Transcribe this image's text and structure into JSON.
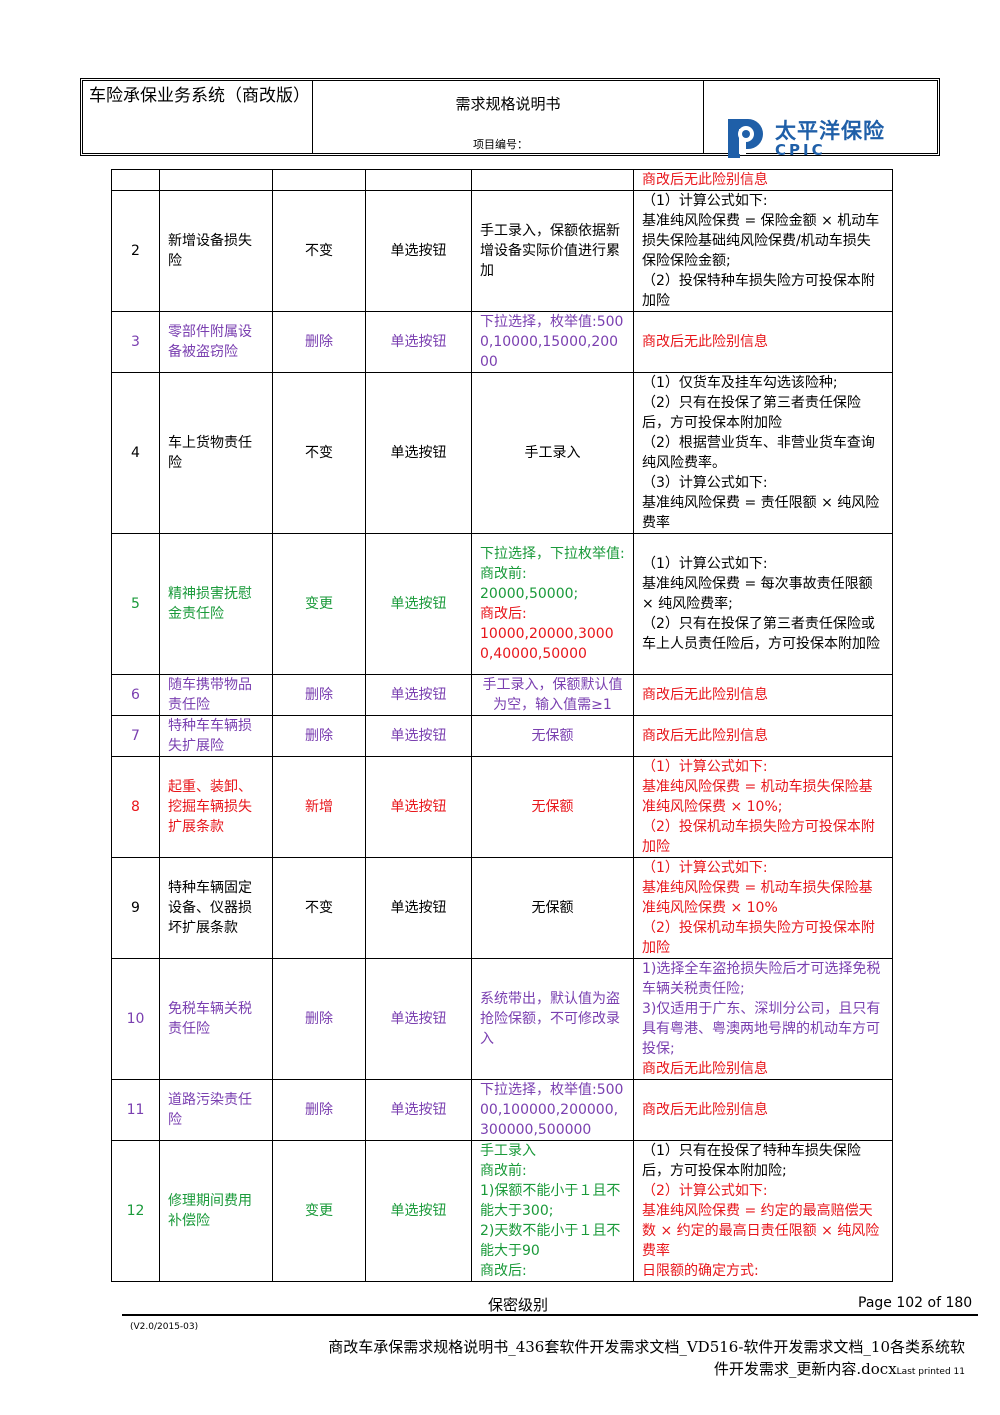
{
  "header": {
    "system_name": "车险承保业务系统（商改版）",
    "doc_title": "需求规格说明书",
    "project_no_label": "项目编号：",
    "logo_text": "太平洋保险",
    "logo_sub": "CPIC"
  },
  "rows": [
    {
      "no": "",
      "name": "",
      "change": "",
      "control": "",
      "value": [],
      "rule": [
        {
          "t": "商改后无此险别信息",
          "c": "red"
        }
      ],
      "color": ""
    },
    {
      "no": "2",
      "name": "新增设备损失险",
      "change": "不变",
      "control": "单选按钮",
      "color": "",
      "value": [
        {
          "t": "手工录入，保额依据新增设备实际价值进行累加",
          "c": ""
        }
      ],
      "rule": [
        {
          "t": "（1）计算公式如下:",
          "c": ""
        },
        {
          "t": "基准纯风险保费 = 保险金额 × 机动车损失保险基础纯风险保费/机动车损失保险保险金额;",
          "c": ""
        },
        {
          "t": "（2）投保特种车损失险方可投保本附加险",
          "c": ""
        }
      ]
    },
    {
      "no": "3",
      "name": "零部件附属设备被盗窃险",
      "change": "删除",
      "control": "单选按钮",
      "color": "purple",
      "value": [
        {
          "t": "下拉选择，枚举值:5000,10000,15000,20000",
          "c": "purple"
        }
      ],
      "rule": [
        {
          "t": "商改后无此险别信息",
          "c": "red"
        }
      ]
    },
    {
      "no": "4",
      "name": "车上货物责任险",
      "change": "不变",
      "control": "单选按钮",
      "color": "",
      "value": [
        {
          "t": "手工录入",
          "c": "",
          "center": true
        }
      ],
      "rule": [
        {
          "t": "（1）仅货车及挂车勾选该险种;",
          "c": ""
        },
        {
          "t": "（2）只有在投保了第三者责任保险后，方可投保本附加险",
          "c": ""
        },
        {
          "t": "（2）根据营业货车、非营业货车查询纯风险费率。",
          "c": ""
        },
        {
          "t": "（3）计算公式如下:",
          "c": ""
        },
        {
          "t": "   基准纯风险保费 = 责任限额 × 纯风险费率",
          "c": ""
        }
      ]
    },
    {
      "no": "5",
      "name": "精神损害抚慰金责任险",
      "change": "变更",
      "control": "单选按钮",
      "color": "green",
      "value": [
        {
          "t": "下拉选择，下拉枚举值:",
          "c": "green"
        },
        {
          "t": "商改前:",
          "c": "green"
        },
        {
          "t": "20000,50000;",
          "c": "green"
        },
        {
          "t": "商改后:",
          "c": "red"
        },
        {
          "t": "10000,20000,30000,40000,50000",
          "c": "red"
        }
      ],
      "rule": [
        {
          "t": "（1）计算公式如下:",
          "c": ""
        },
        {
          "t": "基准纯风险保费 = 每次事故责任限额 × 纯风险费率;",
          "c": ""
        },
        {
          "t": "（2）只有在投保了第三者责任保险或车上人员责任险后，方可投保本附加险",
          "c": ""
        }
      ]
    },
    {
      "no": "6",
      "name": "随车携带物品责任险",
      "change": "删除",
      "control": "单选按钮",
      "color": "purple",
      "value": [
        {
          "t": "手工录入，保额默认值为空，输入值需≥1",
          "c": "purple",
          "center": true
        }
      ],
      "rule": [
        {
          "t": "商改后无此险别信息",
          "c": "red"
        }
      ]
    },
    {
      "no": "7",
      "name": "特种车车辆损失扩展险",
      "change": "删除",
      "control": "单选按钮",
      "color": "purple",
      "value": [
        {
          "t": "无保额",
          "c": "purple",
          "center": true
        }
      ],
      "rule": [
        {
          "t": "商改后无此险别信息",
          "c": "red"
        }
      ]
    },
    {
      "no": "8",
      "name": "起重、装卸、挖掘车辆损失扩展条款",
      "change": "新增",
      "control": "单选按钮",
      "color": "red",
      "value": [
        {
          "t": "无保额",
          "c": "red",
          "center": true
        }
      ],
      "rule": [
        {
          "t": "（1）计算公式如下:",
          "c": "red"
        },
        {
          "t": "基准纯风险保费 = 机动车损失保险基准纯风险保费 × 10%;",
          "c": "red"
        },
        {
          "t": "（2）投保机动车损失险方可投保本附加险",
          "c": "red"
        }
      ]
    },
    {
      "no": "9",
      "name": "特种车辆固定设备、仪器损坏扩展条款",
      "change": "不变",
      "control": "单选按钮",
      "color": "",
      "value": [
        {
          "t": "无保额",
          "c": "",
          "center": true
        }
      ],
      "rule": [
        {
          "t": "（1）计算公式如下:",
          "c": "red"
        },
        {
          "t": "基准纯风险保费 = 机动车损失保险基准纯风险保费 × 10%",
          "c": "red"
        },
        {
          "t": "（2）投保机动车损失险方可投保本附加险",
          "c": "red"
        }
      ]
    },
    {
      "no": "10",
      "name": "免税车辆关税责任险",
      "change": "删除",
      "control": "单选按钮",
      "color": "purple",
      "value": [
        {
          "t": "系统带出，默认值为盗抢险保额，不可修改录入",
          "c": "purple"
        }
      ],
      "rule": [
        {
          "t": "1)选择全车盗抢损失险后才可选择免税车辆关税责任险;",
          "c": "purple"
        },
        {
          "t": "3)仅适用于广东、深圳分公司，且只有具有粤港、粤澳两地号牌的机动车方可投保;",
          "c": "purple"
        },
        {
          "t": "商改后无此险别信息",
          "c": "red"
        }
      ]
    },
    {
      "no": "11",
      "name": "道路污染责任险",
      "change": "删除",
      "control": "单选按钮",
      "color": "purple",
      "value": [
        {
          "t": "下拉选择，枚举值:50000,100000,200000,300000,500000",
          "c": "purple"
        }
      ],
      "rule": [
        {
          "t": "商改后无此险别信息",
          "c": "red"
        }
      ]
    },
    {
      "no": "12",
      "name": "修理期间费用补偿险",
      "change": "变更",
      "control": "单选按钮",
      "color": "green",
      "value": [
        {
          "t": "手工录入",
          "c": "green"
        },
        {
          "t": "商改前:",
          "c": "green"
        },
        {
          "t": "1)保额不能小于１且不能大于300;",
          "c": "green"
        },
        {
          "t": "2)天数不能小于１且不能大于90",
          "c": "green"
        },
        {
          "t": "商改后:",
          "c": "green"
        }
      ],
      "rule": [
        {
          "t": "（1）只有在投保了特种车损失保险后，方可投保本附加险;",
          "c": ""
        },
        {
          "t": "（2）计算公式如下:",
          "c": "red"
        },
        {
          "t": "基准纯风险保费 = 约定的最高赔偿天数 × 约定的最高日责任限额 × 纯风险费率",
          "c": "red"
        },
        {
          "t": "日限额的确定方式:",
          "c": "red"
        }
      ]
    }
  ],
  "footer": {
    "security": "保密级别",
    "page": "Page 102 of 180",
    "version": "(V2.0/2015-03)",
    "filename": "商改车承保需求规格说明书_436套软件开发需求文档_VD516-软件开发需求文档_10各类系统软件开发需求_更新内容.docx",
    "last_printed": "Last printed 11"
  }
}
